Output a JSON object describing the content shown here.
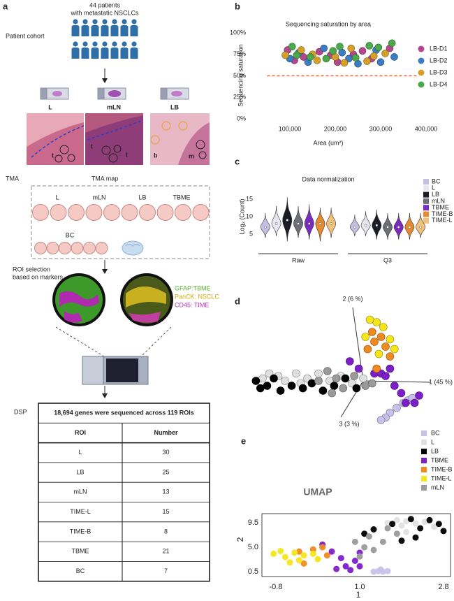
{
  "panel_labels": [
    "a",
    "b",
    "c",
    "d",
    "e"
  ],
  "cohort": {
    "title": [
      "44 patients",
      "with metastatic NSCLCs"
    ],
    "label": "Patient cohort",
    "samples": [
      "L",
      "mLN",
      "LB"
    ],
    "histology_labels": [
      "t",
      "t",
      "t",
      "b",
      "m"
    ]
  },
  "tma": {
    "label": "TMA",
    "map_title": "TMA map",
    "columns": [
      "L",
      "mLN",
      "LB",
      "TBME"
    ],
    "row2": "BC"
  },
  "roi": {
    "label": [
      "ROI selection",
      "based on markers"
    ],
    "markers": [
      "GFAP:TBME",
      "PanCK: NSCLC",
      "CD45: TIME"
    ]
  },
  "dsp": {
    "label": "DSP",
    "table": {
      "title": "18,694 genes were sequenced across 119 ROIs",
      "header": [
        "ROI",
        "Number"
      ],
      "rows": [
        [
          "L",
          30
        ],
        [
          "LB",
          25
        ],
        [
          "mLN",
          13
        ],
        [
          "TIME-L",
          15
        ],
        [
          "TIME-B",
          8
        ],
        [
          "TBME",
          21
        ],
        [
          "BC",
          7
        ]
      ]
    }
  },
  "chart_data": [
    {
      "type": "scatter",
      "title": "Sequencing saturation by area",
      "xlabel": "Area (um²)",
      "ylabel": "Sequencing saturation",
      "xlim": [
        50000,
        400000
      ],
      "ylim": [
        0,
        100
      ],
      "xticks": [
        {
          "value": 100000,
          "label": "100,000"
        },
        {
          "value": 200000,
          "label": "200,000"
        },
        {
          "value": 300000,
          "label": "300,000"
        },
        {
          "value": 400000,
          "label": "400,000"
        }
      ],
      "yticks": [
        {
          "value": 0,
          "label": "0%"
        },
        {
          "value": 25,
          "label": "25%"
        },
        {
          "value": 50,
          "label": "50%"
        },
        {
          "value": 75,
          "label": "75%"
        },
        {
          "value": 100,
          "label": "100%"
        }
      ],
      "hline": 50,
      "hline_color": "#e8602a",
      "legend": "right",
      "series": [
        {
          "name": "LB-D1",
          "color": "#b5478f",
          "x": [
            95000,
            130000,
            165000,
            205000,
            240000,
            280000,
            320000,
            110000,
            190000,
            260000
          ],
          "values": [
            80,
            72,
            78,
            66,
            75,
            70,
            82,
            68,
            74,
            79
          ]
        },
        {
          "name": "LB-D2",
          "color": "#3b7dc0",
          "x": [
            100000,
            140000,
            175000,
            215000,
            250000,
            290000,
            330000,
            120000,
            230000,
            300000
          ],
          "values": [
            70,
            66,
            82,
            77,
            64,
            80,
            72,
            77,
            70,
            66
          ]
        },
        {
          "name": "LB-D3",
          "color": "#d4a02a",
          "x": [
            90000,
            125000,
            160000,
            200000,
            235000,
            270000,
            310000,
            150000,
            220000,
            285000
          ],
          "values": [
            74,
            80,
            68,
            72,
            82,
            67,
            76,
            75,
            65,
            73
          ]
        },
        {
          "name": "LB-D4",
          "color": "#4aaa4a",
          "x": [
            105000,
            145000,
            180000,
            210000,
            245000,
            275000,
            325000,
            115000,
            195000,
            295000
          ],
          "values": [
            84,
            72,
            70,
            84,
            71,
            85,
            88,
            74,
            79,
            83
          ]
        }
      ]
    },
    {
      "type": "violin",
      "title": "Data normalization",
      "ylabel": "Log₂ (Count)",
      "groups": [
        "Raw",
        "Q3"
      ],
      "ylim": [
        2,
        17
      ],
      "yticks": [
        5,
        10,
        15
      ],
      "legend": "right",
      "series": [
        {
          "name": "BC",
          "color": "#c5bfe6",
          "median": [
            7,
            7
          ],
          "min": [
            4,
            4.5
          ],
          "max": [
            11,
            10.5
          ]
        },
        {
          "name": "L",
          "color": "#e6e6ee",
          "median": [
            8,
            7.5
          ],
          "min": [
            4.5,
            4.5
          ],
          "max": [
            13,
            11.5
          ]
        },
        {
          "name": "LB",
          "color": "#1c1c24",
          "median": [
            9,
            7.5
          ],
          "min": [
            3,
            3.5
          ],
          "max": [
            15.5,
            12
          ]
        },
        {
          "name": "mLN",
          "color": "#6e6e76",
          "median": [
            8,
            7
          ],
          "min": [
            4,
            3.5
          ],
          "max": [
            13,
            11
          ]
        },
        {
          "name": "TBME",
          "color": "#7b2cbf",
          "median": [
            8,
            7
          ],
          "min": [
            3.5,
            3.5
          ],
          "max": [
            13.5,
            11
          ]
        },
        {
          "name": "TIME-B",
          "color": "#e58a2e",
          "median": [
            8,
            7
          ],
          "min": [
            3,
            3.5
          ],
          "max": [
            12.5,
            11
          ]
        },
        {
          "name": "TIME-L",
          "color": "#f2c27a",
          "median": [
            8,
            7
          ],
          "min": [
            4,
            4
          ],
          "max": [
            12.5,
            11
          ]
        }
      ]
    },
    {
      "type": "scatter",
      "axis_labels": [
        "1 (45 %)",
        "2 (6 %)",
        "3 (3 %)"
      ],
      "xlim": [
        -5,
        3
      ],
      "ylim": [
        -2,
        3
      ],
      "series": [
        {
          "name": "BC",
          "color": "#c8c2ea",
          "x": [
            1.2,
            1.5,
            1.8,
            2.0,
            1.0,
            2.2,
            0.8
          ],
          "values": [
            -1.3,
            -1.1,
            -0.9,
            -0.8,
            -1.5,
            -0.7,
            -1.6
          ]
        },
        {
          "name": "L",
          "color": "#e0e0e0",
          "x": [
            -4.5,
            -4.2,
            -3.8,
            -3.5,
            -3.0,
            -2.5,
            -2.0,
            -1.5,
            -1.0,
            -0.5,
            0,
            -2.8
          ],
          "values": [
            0.1,
            0.3,
            0.2,
            0.0,
            0.3,
            0.1,
            0.3,
            0.0,
            0.2,
            -0.1,
            0.1,
            -0.1
          ]
        },
        {
          "name": "LB",
          "color": "#000000",
          "x": [
            -4.8,
            -4.6,
            -4.3,
            -4.0,
            -3.7,
            -3.2,
            -2.7,
            -2.3,
            -1.8,
            -1.3,
            -0.8,
            -0.3
          ],
          "values": [
            0.0,
            -0.3,
            -0.2,
            0.1,
            -0.4,
            -0.2,
            -0.3,
            -0.1,
            -0.4,
            -0.2,
            0.1,
            -0.3
          ]
        },
        {
          "name": "TBME",
          "color": "#7d1fc9",
          "x": [
            -0.6,
            -0.2,
            0.5,
            0.8,
            1.0,
            1.4,
            1.7,
            1.9,
            2.3,
            2.5,
            1.2
          ],
          "values": [
            0.8,
            0.5,
            0.3,
            0.3,
            0.2,
            -0.2,
            -0.5,
            -0.9,
            -0.9,
            -0.6,
            0.5
          ]
        },
        {
          "name": "TIME-B",
          "color": "#f08a1c",
          "x": [
            0.2,
            0.5,
            0.8,
            0.4,
            1.0,
            0.6,
            1.2
          ],
          "values": [
            1.3,
            1.6,
            1.8,
            2.0,
            1.4,
            0.5,
            1.0
          ]
        },
        {
          "name": "TIME-L",
          "color": "#f5e61a",
          "x": [
            0.1,
            0.6,
            0.9,
            1.2,
            0.3,
            1.4,
            0.7
          ],
          "values": [
            1.8,
            2.4,
            2.2,
            1.7,
            2.5,
            1.3,
            1.1
          ]
        },
        {
          "name": "mLN",
          "color": "#9a9a9a",
          "x": [
            -2.0,
            -1.6,
            -1.2,
            -0.9,
            -0.4,
            0.1,
            0.4,
            -1.4
          ],
          "values": [
            0.0,
            0.4,
            0.1,
            -0.3,
            0.2,
            -0.2,
            -0.1,
            -0.5
          ]
        }
      ]
    },
    {
      "type": "scatter",
      "title": "UMAP",
      "xlabel": "1",
      "ylabel": "2",
      "xlim": [
        -1.1,
        2.95
      ],
      "ylim": [
        -0.4,
        11.2
      ],
      "xticks": [
        -0.8,
        {
          "value": 1,
          "label": "1.0"
        },
        2.8
      ],
      "yticks": [
        0.5,
        {
          "value": 5,
          "label": "5.0"
        },
        9.5
      ],
      "legend": "right",
      "frame": true,
      "series": [
        {
          "name": "BC",
          "color": "#c8c2ea",
          "x": [
            1.3,
            1.4,
            1.5,
            1.6,
            1.45
          ],
          "values": [
            0.5,
            0.6,
            0.5,
            0.6,
            0.9
          ]
        },
        {
          "name": "L",
          "color": "#e0e0e0",
          "x": [
            1.6,
            1.8,
            2.0,
            2.2,
            2.4,
            2.6,
            2.0,
            1.9
          ],
          "values": [
            9.5,
            10.0,
            9.8,
            9.4,
            9.7,
            8.8,
            7.8,
            9.0
          ]
        },
        {
          "name": "LB",
          "color": "#000000",
          "x": [
            1.1,
            1.3,
            1.7,
            2.1,
            2.3,
            2.5,
            2.7,
            2.8,
            2.2,
            1.9
          ],
          "values": [
            7.5,
            8.3,
            9.3,
            10.2,
            8.5,
            10.0,
            9.3,
            8.0,
            6.8,
            6.2
          ]
        },
        {
          "name": "TBME",
          "color": "#7d1fc9",
          "x": [
            0.2,
            0.4,
            0.6,
            0.7,
            0.9,
            1.0,
            0.8,
            1.0,
            0.5
          ],
          "values": [
            5.5,
            4.2,
            3.0,
            1.5,
            2.5,
            4.0,
            0.8,
            1.5,
            1.0
          ]
        },
        {
          "name": "TIME-B",
          "color": "#f08a1c",
          "x": [
            -0.3,
            0.0,
            0.2,
            -0.2,
            0.3
          ],
          "values": [
            4.2,
            4.6,
            5.0,
            2.0,
            3.5
          ]
        },
        {
          "name": "TIME-L",
          "color": "#f5e61a",
          "x": [
            -0.85,
            -0.6,
            -0.4,
            -0.2,
            -0.7,
            -0.3,
            0.0,
            -0.5,
            0.1
          ],
          "values": [
            3.8,
            3.2,
            4.0,
            3.5,
            4.3,
            2.6,
            3.8,
            2.2,
            2.8
          ]
        },
        {
          "name": "mLN",
          "color": "#9a9a9a",
          "x": [
            0.9,
            1.1,
            1.3,
            1.0,
            1.2,
            1.5,
            1.6,
            1.8
          ],
          "values": [
            6.0,
            5.0,
            4.5,
            3.3,
            7.0,
            6.0,
            8.5,
            7.5
          ]
        }
      ]
    }
  ]
}
